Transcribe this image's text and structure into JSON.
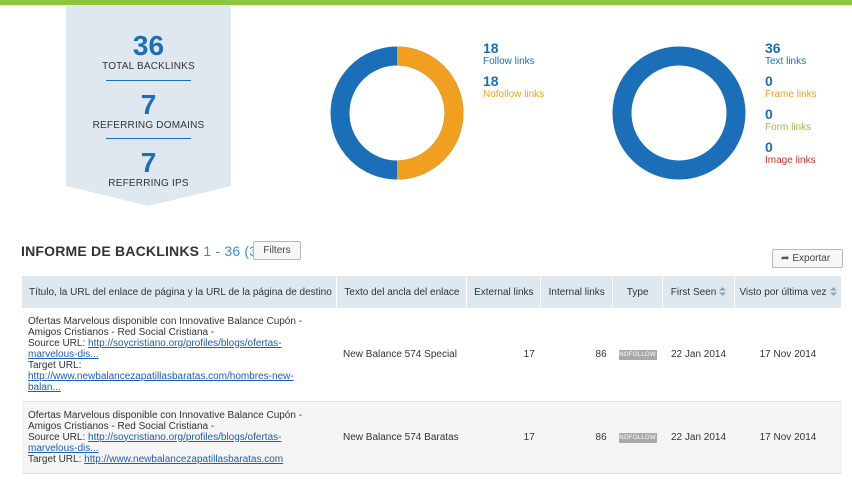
{
  "summary": {
    "total_backlinks": {
      "value": "36",
      "label": "TOTAL BACKLINKS"
    },
    "referring_domains": {
      "value": "7",
      "label": "REFERRING DOMAINS"
    },
    "referring_ips": {
      "value": "7",
      "label": "REFERRING IPS"
    }
  },
  "follow_chart": {
    "follow": {
      "value": "18",
      "label": "Follow links",
      "color": "#1a6fb8"
    },
    "nofollow": {
      "value": "18",
      "label": "Nofollow links",
      "color": "#f0a01e"
    }
  },
  "type_chart": {
    "text": {
      "value": "36",
      "label": "Text links",
      "color": "#1a6fb8"
    },
    "frame": {
      "value": "0",
      "label": "Frame links",
      "color": "#f0a01e"
    },
    "form": {
      "value": "0",
      "label": "Form links",
      "color": "#8cc63f"
    },
    "image": {
      "value": "0",
      "label": "Image links",
      "color": "#d0312d"
    }
  },
  "report": {
    "title": "INFORME DE BACKLINKS",
    "range": "1 - 36 (36)",
    "filters_label": "Filters",
    "export_label": "Exportar"
  },
  "table": {
    "headers": {
      "title": "Título, la URL del enlace de página y la URL de la página de destino",
      "anchor": "Texto del ancla del enlace",
      "external": "External links",
      "internal": "Internal links",
      "type": "Type",
      "first_seen": "First Seen",
      "last_seen": "Visto por última vez"
    },
    "rows": [
      {
        "title_line1": "Ofertas Marvelous disponible con Innovative Balance Cupón -",
        "title_line2": "Amigos Cristianos - Red Social Cristiana -",
        "source_prefix": "Source URL: ",
        "source_url_a": "http://soycristiano.org/profiles/blogs/ofertas-",
        "source_url_b": "marvelous-dis...",
        "target_prefix": "Target URL:",
        "target_url_a": "http://www.newbalancezapatillasbaratas.com/hombres-new-",
        "target_url_b": "balan...",
        "anchor": "New Balance 574 Special",
        "external": "17",
        "internal": "86",
        "type": "NOFOLLOW",
        "first_seen": "22 Jan 2014",
        "last_seen": "17 Nov 2014"
      },
      {
        "title_line1": "Ofertas Marvelous disponible con Innovative Balance Cupón -",
        "title_line2": "Amigos Cristianos - Red Social Cristiana -",
        "source_prefix": "Source URL: ",
        "source_url_a": "http://soycristiano.org/profiles/blogs/ofertas-",
        "source_url_b": "marvelous-dis...",
        "target_prefix": "Target URL: ",
        "target_url": "http://www.newbalancezapatillasbaratas.com",
        "anchor": "New Balance 574 Baratas",
        "external": "17",
        "internal": "86",
        "type": "NOFOLLOW",
        "first_seen": "22 Jan 2014",
        "last_seen": "17 Nov 2014"
      }
    ]
  }
}
